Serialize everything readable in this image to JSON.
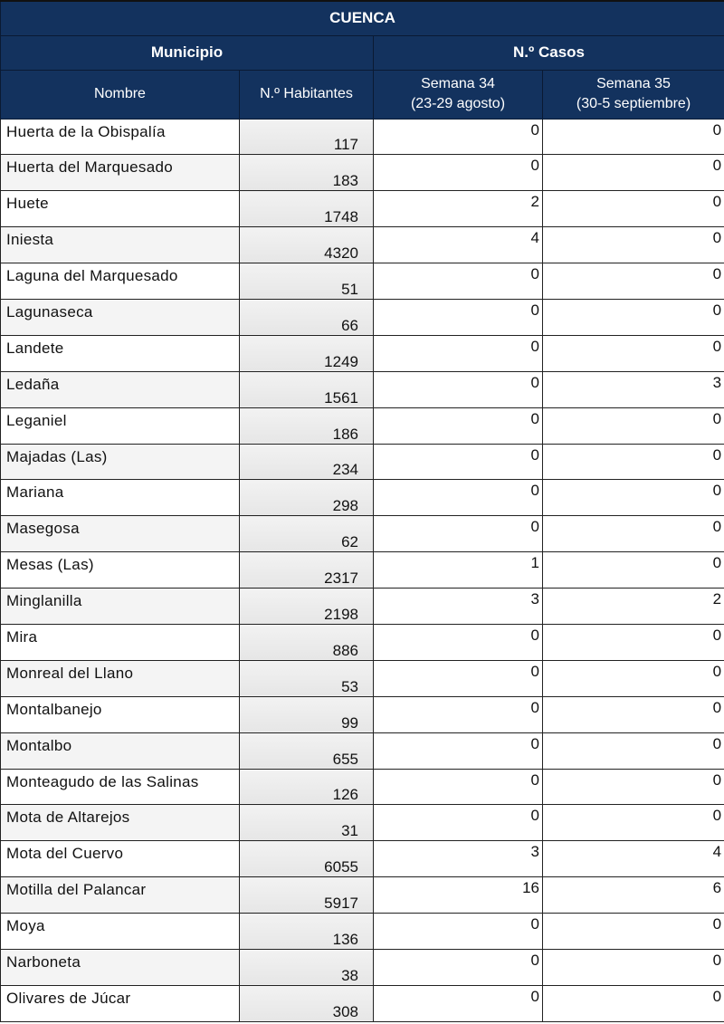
{
  "title": "CUENCA",
  "group_headers": {
    "municipio": "Municipio",
    "casos": "N.º Casos"
  },
  "columns": {
    "nombre": "Nombre",
    "habitantes": "N.º Habitantes",
    "s34": "Semana 34",
    "s34_range": "(23-29 agosto)",
    "s35": "Semana 35",
    "s35_range": "(30-5 septiembre)"
  },
  "rows": [
    [
      "Huerta de la Obispalía",
      "117",
      "0",
      "0"
    ],
    [
      "Huerta del Marquesado",
      "183",
      "0",
      "0"
    ],
    [
      "Huete",
      "1748",
      "2",
      "0"
    ],
    [
      "Iniesta",
      "4320",
      "4",
      "0"
    ],
    [
      "Laguna del Marquesado",
      "51",
      "0",
      "0"
    ],
    [
      "Lagunaseca",
      "66",
      "0",
      "0"
    ],
    [
      "Landete",
      "1249",
      "0",
      "0"
    ],
    [
      "Ledaña",
      "1561",
      "0",
      "3"
    ],
    [
      "Leganiel",
      "186",
      "0",
      "0"
    ],
    [
      "Majadas (Las)",
      "234",
      "0",
      "0"
    ],
    [
      "Mariana",
      "298",
      "0",
      "0"
    ],
    [
      "Masegosa",
      "62",
      "0",
      "0"
    ],
    [
      "Mesas (Las)",
      "2317",
      "1",
      "0"
    ],
    [
      "Minglanilla",
      "2198",
      "3",
      "2"
    ],
    [
      "Mira",
      "886",
      "0",
      "0"
    ],
    [
      "Monreal del Llano",
      "53",
      "0",
      "0"
    ],
    [
      "Montalbanejo",
      "99",
      "0",
      "0"
    ],
    [
      "Montalbo",
      "655",
      "0",
      "0"
    ],
    [
      "Monteagudo de las Salinas",
      "126",
      "0",
      "0"
    ],
    [
      "Mota de Altarejos",
      "31",
      "0",
      "0"
    ],
    [
      "Mota del Cuervo",
      "6055",
      "3",
      "4"
    ],
    [
      "Motilla del Palancar",
      "5917",
      "16",
      "6"
    ],
    [
      "Moya",
      "136",
      "0",
      "0"
    ],
    [
      "Narboneta",
      "38",
      "0",
      "0"
    ],
    [
      "Olivares de Júcar",
      "308",
      "0",
      "0"
    ]
  ],
  "colors": {
    "header": "#13325e"
  }
}
